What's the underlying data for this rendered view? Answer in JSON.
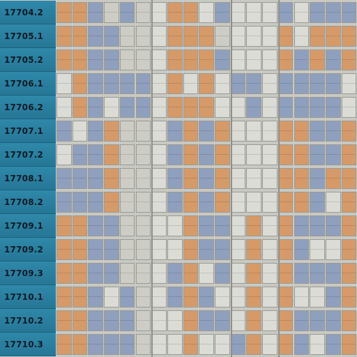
{
  "colors": {
    "orange": "#d69a68",
    "blue": "#8f9fbe",
    "grey": "#cdcdc6",
    "white": "#dcdcd6"
  },
  "rows": [
    {
      "label": "17704.2",
      "cells": [
        "o",
        "o",
        "b",
        "g",
        "b",
        "g",
        "w",
        "o",
        "o",
        "w",
        "b",
        "w",
        "w",
        "w",
        "b",
        "w",
        "b",
        "b",
        "b"
      ]
    },
    {
      "label": "17705.1",
      "cells": [
        "o",
        "o",
        "b",
        "b",
        "g",
        "g",
        "w",
        "o",
        "o",
        "o",
        "g",
        "w",
        "w",
        "w",
        "o",
        "w",
        "o",
        "o",
        "o"
      ]
    },
    {
      "label": "17705.2",
      "cells": [
        "o",
        "o",
        "b",
        "b",
        "g",
        "g",
        "w",
        "o",
        "o",
        "o",
        "b",
        "w",
        "w",
        "w",
        "o",
        "b",
        "o",
        "b",
        "o"
      ]
    },
    {
      "label": "17706.1",
      "cells": [
        "w",
        "o",
        "b",
        "b",
        "b",
        "b",
        "w",
        "o",
        "w",
        "o",
        "w",
        "b",
        "b",
        "w",
        "b",
        "b",
        "b",
        "b",
        "w"
      ]
    },
    {
      "label": "17706.2",
      "cells": [
        "w",
        "o",
        "b",
        "w",
        "b",
        "b",
        "w",
        "o",
        "o",
        "o",
        "w",
        "w",
        "b",
        "w",
        "b",
        "b",
        "b",
        "b",
        "w"
      ]
    },
    {
      "label": "17707.1",
      "cells": [
        "b",
        "w",
        "b",
        "o",
        "g",
        "g",
        "w",
        "b",
        "o",
        "b",
        "o",
        "w",
        "w",
        "w",
        "o",
        "o",
        "b",
        "b",
        "o"
      ]
    },
    {
      "label": "17707.2",
      "cells": [
        "w",
        "b",
        "b",
        "o",
        "g",
        "g",
        "w",
        "b",
        "o",
        "b",
        "o",
        "w",
        "w",
        "w",
        "o",
        "o",
        "b",
        "b",
        "o"
      ]
    },
    {
      "label": "17708.1",
      "cells": [
        "b",
        "b",
        "b",
        "o",
        "g",
        "g",
        "w",
        "b",
        "o",
        "b",
        "o",
        "w",
        "w",
        "w",
        "o",
        "o",
        "b",
        "o",
        "o"
      ]
    },
    {
      "label": "17708.2",
      "cells": [
        "b",
        "b",
        "b",
        "o",
        "g",
        "g",
        "w",
        "b",
        "o",
        "b",
        "o",
        "w",
        "w",
        "w",
        "o",
        "o",
        "b",
        "w",
        "o"
      ]
    },
    {
      "label": "17709.1",
      "cells": [
        "o",
        "o",
        "b",
        "b",
        "g",
        "g",
        "w",
        "w",
        "o",
        "b",
        "b",
        "w",
        "o",
        "w",
        "o",
        "b",
        "b",
        "b",
        "o"
      ]
    },
    {
      "label": "17709.2",
      "cells": [
        "o",
        "o",
        "b",
        "b",
        "g",
        "g",
        "w",
        "w",
        "o",
        "b",
        "b",
        "w",
        "o",
        "w",
        "o",
        "b",
        "w",
        "w",
        "o"
      ]
    },
    {
      "label": "17709.3",
      "cells": [
        "o",
        "o",
        "b",
        "b",
        "g",
        "g",
        "w",
        "b",
        "o",
        "w",
        "b",
        "w",
        "o",
        "w",
        "o",
        "b",
        "b",
        "b",
        "o"
      ]
    },
    {
      "label": "17710.1",
      "cells": [
        "o",
        "o",
        "b",
        "w",
        "b",
        "g",
        "w",
        "b",
        "o",
        "b",
        "w",
        "w",
        "o",
        "w",
        "o",
        "w",
        "w",
        "b",
        "o"
      ]
    },
    {
      "label": "17710.2",
      "cells": [
        "o",
        "o",
        "b",
        "b",
        "b",
        "g",
        "w",
        "w",
        "o",
        "b",
        "b",
        "w",
        "o",
        "w",
        "o",
        "b",
        "b",
        "b",
        "o"
      ]
    },
    {
      "label": "17710.3",
      "cells": [
        "o",
        "o",
        "b",
        "b",
        "b",
        "g",
        "w",
        "w",
        "o",
        "w",
        "w",
        "b",
        "o",
        "w",
        "o",
        "b",
        "w",
        "b",
        "o"
      ]
    }
  ]
}
